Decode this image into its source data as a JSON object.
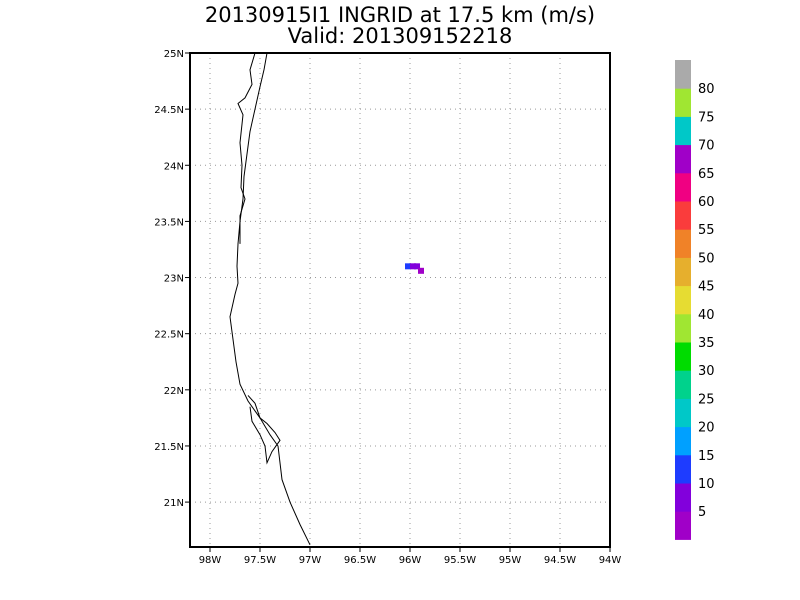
{
  "title": {
    "line1": "20130915I1 INGRID at 17.5 km (m/s)",
    "line2": "Valid: 201309152218"
  },
  "map": {
    "lon_range": [
      -98.2,
      -94.0
    ],
    "lat_range": [
      20.6,
      25.0
    ],
    "x_ticks": [
      {
        "value": -98.0,
        "label": "98W"
      },
      {
        "value": -97.5,
        "label": "97.5W"
      },
      {
        "value": -97.0,
        "label": "97W"
      },
      {
        "value": -96.5,
        "label": "96.5W"
      },
      {
        "value": -96.0,
        "label": "96W"
      },
      {
        "value": -95.5,
        "label": "95.5W"
      },
      {
        "value": -95.0,
        "label": "95W"
      },
      {
        "value": -94.5,
        "label": "94.5W"
      },
      {
        "value": -94.0,
        "label": "94W"
      }
    ],
    "y_ticks": [
      {
        "value": 25.0,
        "label": "25N"
      },
      {
        "value": 24.5,
        "label": "24.5N"
      },
      {
        "value": 24.0,
        "label": "24N"
      },
      {
        "value": 23.5,
        "label": "23.5N"
      },
      {
        "value": 23.0,
        "label": "23N"
      },
      {
        "value": 22.5,
        "label": "22.5N"
      },
      {
        "value": 22.0,
        "label": "22N"
      },
      {
        "value": 21.5,
        "label": "21.5N"
      },
      {
        "value": 21.0,
        "label": "21N"
      }
    ],
    "grid": "dotted",
    "coastline_outer": [
      [
        -97.43,
        25.0
      ],
      [
        -97.46,
        24.85
      ],
      [
        -97.5,
        24.7
      ],
      [
        -97.55,
        24.5
      ],
      [
        -97.6,
        24.3
      ],
      [
        -97.63,
        24.1
      ],
      [
        -97.66,
        23.9
      ],
      [
        -97.67,
        23.7
      ],
      [
        -97.7,
        23.5
      ],
      [
        -97.72,
        23.3
      ],
      [
        -97.73,
        23.1
      ],
      [
        -97.72,
        22.95
      ],
      [
        -97.75,
        22.85
      ],
      [
        -97.8,
        22.65
      ],
      [
        -97.77,
        22.45
      ],
      [
        -97.74,
        22.25
      ],
      [
        -97.7,
        22.05
      ],
      [
        -97.62,
        21.9
      ],
      [
        -97.5,
        21.75
      ],
      [
        -97.4,
        21.6
      ],
      [
        -97.32,
        21.5
      ],
      [
        -97.3,
        21.35
      ],
      [
        -97.28,
        21.2
      ],
      [
        -97.2,
        21.0
      ],
      [
        -97.1,
        20.8
      ],
      [
        -97.0,
        20.62
      ]
    ],
    "coastline_inner": [
      [
        -97.55,
        25.0
      ],
      [
        -97.6,
        24.85
      ],
      [
        -97.58,
        24.72
      ],
      [
        -97.65,
        24.6
      ],
      [
        -97.72,
        24.55
      ],
      [
        -97.67,
        24.45
      ],
      [
        -97.7,
        24.2
      ],
      [
        -97.68,
        24.0
      ],
      [
        -97.69,
        23.8
      ],
      [
        -97.65,
        23.7
      ],
      [
        -97.7,
        23.55
      ],
      [
        -97.7,
        23.3
      ]
    ],
    "laguna_outline": [
      [
        -97.62,
        21.95
      ],
      [
        -97.55,
        21.88
      ],
      [
        -97.5,
        21.75
      ],
      [
        -97.43,
        21.7
      ],
      [
        -97.35,
        21.62
      ],
      [
        -97.3,
        21.55
      ],
      [
        -97.38,
        21.45
      ],
      [
        -97.43,
        21.35
      ],
      [
        -97.45,
        21.5
      ],
      [
        -97.5,
        21.6
      ],
      [
        -97.58,
        21.72
      ],
      [
        -97.6,
        21.85
      ]
    ]
  },
  "cells": [
    {
      "lon": -96.02,
      "lat": 23.1,
      "value": 12
    },
    {
      "lon": -95.97,
      "lat": 23.1,
      "value": 8
    },
    {
      "lon": -95.93,
      "lat": 23.1,
      "value": 8
    },
    {
      "lon": -95.89,
      "lat": 23.06,
      "value": 4
    }
  ],
  "colorbar": {
    "colors": [
      "#a000c8",
      "#8200dc",
      "#1e3cff",
      "#00a0ff",
      "#00c8c8",
      "#00d28c",
      "#00dc00",
      "#a0e632",
      "#e6dc32",
      "#e6af2d",
      "#f08228",
      "#fa3c3c",
      "#f00082",
      "#a000c8",
      "#00c8c8",
      "#a0e632",
      "#aaaaaa"
    ],
    "labels": [
      "5",
      "10",
      "15",
      "20",
      "25",
      "30",
      "35",
      "40",
      "45",
      "50",
      "55",
      "60",
      "65",
      "70",
      "75",
      "80"
    ]
  }
}
